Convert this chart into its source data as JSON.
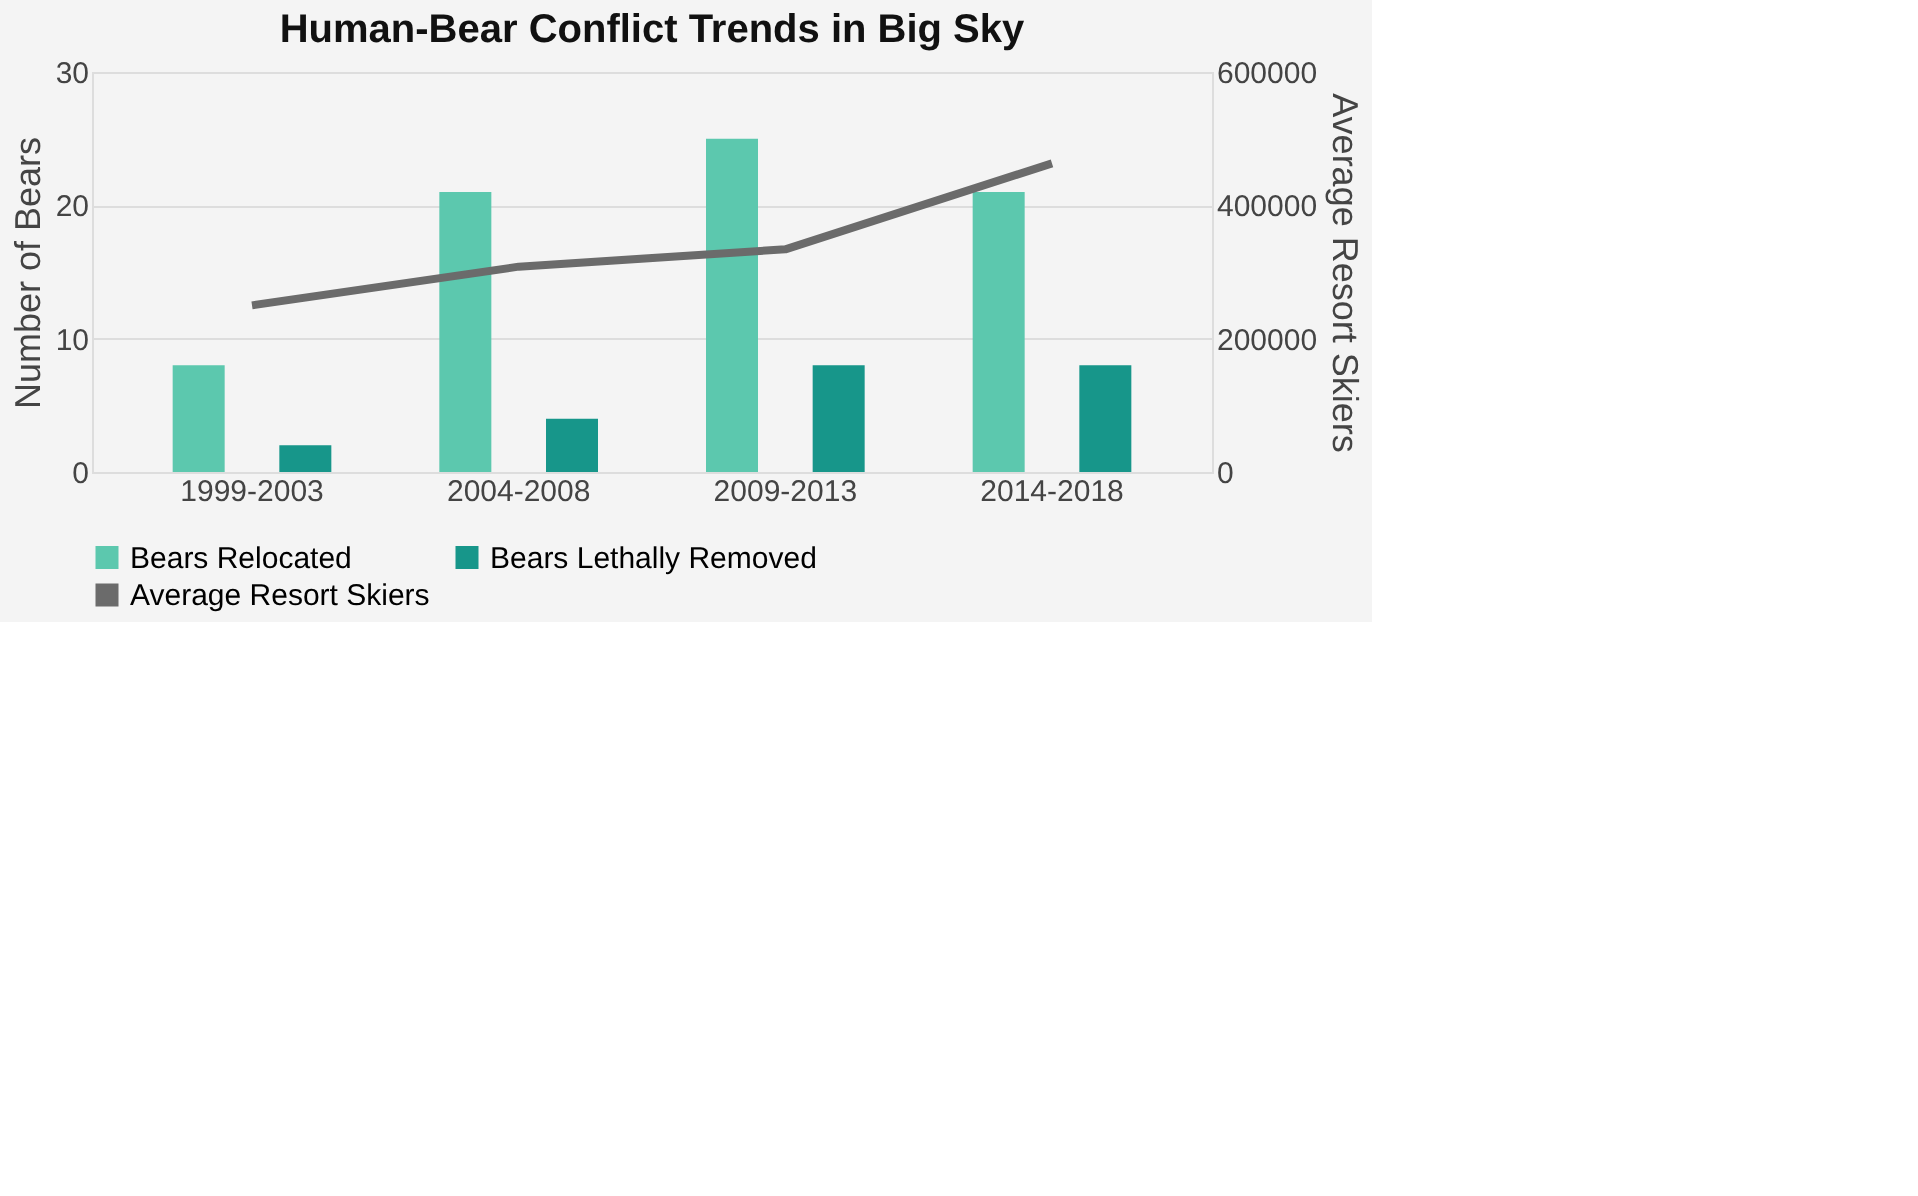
{
  "chart_data": {
    "type": "bar",
    "title": "Human-Bear Conflict Trends in Big Sky",
    "ylabel": "Number of Bears",
    "y2label": "Average Resort Skiers",
    "categories": [
      "1999-2003",
      "2004-2008",
      "2009-2013",
      "2014-2018"
    ],
    "series": [
      {
        "name": "Bears Relocated",
        "color": "#5cc8ae",
        "values": [
          8,
          21,
          25,
          21
        ]
      },
      {
        "name": "Bears Lethally Removed",
        "color": "#17968a",
        "values": [
          2,
          4,
          8,
          8
        ]
      },
      {
        "name": "Average Resort Skiers",
        "type": "line",
        "axis": "y2",
        "color": "#6b6b6b",
        "values": [
          250000,
          308000,
          334000,
          463000
        ]
      }
    ],
    "ylim": [
      0,
      30
    ],
    "yticks": [
      0,
      10,
      20,
      30
    ],
    "y2lim": [
      0,
      600000
    ],
    "y2ticks": [
      0,
      200000,
      400000,
      600000
    ],
    "grid": "y",
    "legend": "bottom"
  }
}
